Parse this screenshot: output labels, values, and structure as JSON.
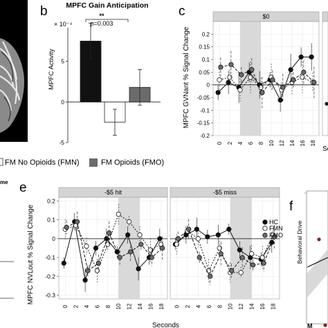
{
  "panel_letters": {
    "b": "b",
    "c": "c",
    "e": "e",
    "f": "f"
  },
  "legend_top": {
    "fmn": "FM No Opioids (FMN)",
    "fmo": "FM Opioids (FMO)"
  },
  "left_crop_text": {
    "me": "me"
  },
  "panel_f": {
    "ylabel": "Behavioral Drive",
    "tick_label": "M"
  },
  "colors": {
    "hc": "#111111",
    "fmn": "#ffffff",
    "fmo": "#6b6b6b",
    "highlight": "#d9d9d9",
    "strip": "#d4d4d4",
    "grid": "#e9e9e9",
    "f_dot": "#8b2020"
  },
  "chart_data": [
    {
      "type": "bar",
      "title": "MPFC Gain Anticipation",
      "ylabel": "MPFC Activity",
      "y_multiplier": "× 10⁻⁴",
      "ylim": [
        -5,
        10
      ],
      "yticks": [
        -5,
        0,
        5
      ],
      "categories": [
        "HC",
        "FMN",
        "FMO"
      ],
      "values": [
        7.5,
        -2.5,
        1.8
      ],
      "errors": [
        2.2,
        1.6,
        2.2
      ],
      "significance": {
        "stars": "**",
        "p": "p=0.003"
      }
    },
    {
      "type": "line",
      "ylabel": "MPFC GVNant % Signal Change",
      "xlabel": "Seconds",
      "facets": [
        "$0"
      ],
      "x": [
        0,
        2,
        4,
        6,
        8,
        10,
        12,
        14,
        16,
        18
      ],
      "xticks": [
        "0",
        "2",
        "4",
        "6",
        "8",
        "10",
        "12",
        "14",
        "16",
        "18"
      ],
      "ylim": [
        -0.2,
        0.25
      ],
      "yticks": [
        "-0.2",
        "-0.15",
        "-0.1",
        "-0.05",
        "0",
        "0.05",
        "0.1",
        "0.15",
        "0.2"
      ],
      "shaded_x": [
        4,
        8
      ],
      "series": [
        {
          "name": "HC",
          "values": [
            -0.03,
            0.01,
            -0.01,
            0.05,
            0.0,
            0.02,
            -0.06,
            0.06,
            0.11,
            0.11
          ]
        },
        {
          "name": "FMN",
          "values": [
            0.02,
            0.03,
            -0.02,
            0.03,
            -0.01,
            0.03,
            -0.02,
            0.01,
            0.03,
            0.01
          ]
        },
        {
          "name": "FMO",
          "values": [
            0.07,
            0.08,
            0.04,
            0.06,
            -0.03,
            0.02,
            -0.01,
            0.02,
            0.05,
            0.01
          ]
        }
      ]
    },
    {
      "type": "line",
      "ylabel": "MPFC NVLout % Signal Change",
      "xlabel": "Seconds",
      "facets": [
        "-$5 hit",
        "-$5 miss"
      ],
      "x": [
        0,
        2,
        4,
        6,
        8,
        10,
        12,
        14,
        16,
        18
      ],
      "xticks": [
        "0",
        "2",
        "4",
        "6",
        "8",
        "10",
        "12",
        "14",
        "16",
        "18"
      ],
      "ylim": [
        -0.32,
        0.22
      ],
      "yticks": [
        "-0.3",
        "-0.2",
        "-0.1",
        "0",
        "0.1",
        "0.2"
      ],
      "shaded_x": [
        10,
        14
      ],
      "legend": [
        "HC",
        "FMN",
        "FMO"
      ],
      "series": [
        {
          "name": "HC",
          "facet": "-$5 hit",
          "values": [
            -0.13,
            0.09,
            -0.22,
            -0.05,
            0.0,
            -0.07,
            0.02,
            -0.16,
            -0.1,
            0.0
          ]
        },
        {
          "name": "FMN",
          "facet": "-$5 hit",
          "values": [
            0.05,
            0.07,
            -0.04,
            -0.17,
            -0.03,
            0.13,
            0.09,
            0.02,
            -0.06,
            -0.03
          ]
        },
        {
          "name": "FMO",
          "facet": "-$5 hit",
          "values": [
            0.06,
            0.09,
            -0.17,
            -0.13,
            0.03,
            -0.1,
            -0.07,
            -0.03,
            -0.1,
            -0.05
          ]
        },
        {
          "name": "HC",
          "facet": "-$5 miss",
          "values": [
            -0.03,
            0.02,
            0.05,
            0.01,
            0.02,
            0.05,
            -0.06,
            -0.1,
            -0.11,
            -0.02
          ]
        },
        {
          "name": "FMN",
          "facet": "-$5 miss",
          "values": [
            -0.03,
            0.04,
            0.0,
            -0.17,
            -0.05,
            -0.18,
            -0.18,
            -0.08,
            -0.1,
            0.02
          ]
        },
        {
          "name": "FMO",
          "facet": "-$5 miss",
          "values": [
            0.0,
            0.05,
            -0.1,
            -0.2,
            -0.08,
            -0.17,
            -0.1,
            -0.14,
            -0.13,
            0.01
          ]
        }
      ]
    }
  ]
}
